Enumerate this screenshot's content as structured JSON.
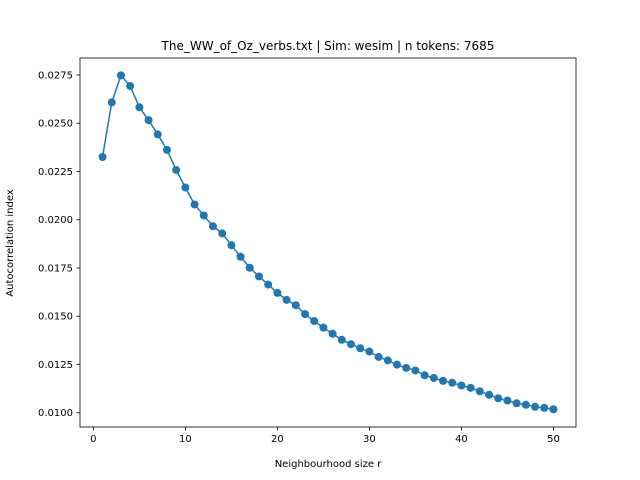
{
  "chart_data": {
    "type": "line",
    "title": "The_WW_of_Oz_verbs.txt | Sim: wesim | n tokens: 7685",
    "xlabel": "Neighbourhood size r",
    "ylabel": "Autocorrelation index",
    "xlim": [
      -1.45,
      52.45
    ],
    "ylim": [
      0.00926,
      0.02838
    ],
    "x_ticks": [
      0,
      10,
      20,
      30,
      40,
      50
    ],
    "y_ticks": [
      0.01,
      0.0125,
      0.015,
      0.0175,
      0.02,
      0.0225,
      0.025,
      0.0275
    ],
    "x_tick_labels": [
      "0",
      "10",
      "20",
      "30",
      "40",
      "50"
    ],
    "y_tick_labels": [
      "0.0100",
      "0.0125",
      "0.0150",
      "0.0175",
      "0.0200",
      "0.0225",
      "0.0250",
      "0.0275"
    ],
    "grid": false,
    "legend": "none",
    "color": "#1f77b4",
    "series": [
      {
        "x": [
          1,
          2,
          3,
          4,
          5,
          6,
          7,
          8,
          9,
          10,
          11,
          12,
          13,
          14,
          15,
          16,
          17,
          18,
          19,
          20,
          21,
          22,
          23,
          24,
          25,
          26,
          27,
          28,
          29,
          30,
          31,
          32,
          33,
          34,
          35,
          36,
          37,
          38,
          39,
          40,
          41,
          42,
          43,
          44,
          45,
          46,
          47,
          48,
          49,
          50
        ],
        "values": [
          0.02325,
          0.02608,
          0.02748,
          0.02693,
          0.02583,
          0.02516,
          0.02442,
          0.02362,
          0.02258,
          0.02167,
          0.02079,
          0.02022,
          0.01966,
          0.01929,
          0.01868,
          0.01808,
          0.01751,
          0.01706,
          0.01664,
          0.01621,
          0.01585,
          0.01557,
          0.01511,
          0.01475,
          0.01441,
          0.01409,
          0.01378,
          0.01355,
          0.01334,
          0.01317,
          0.01289,
          0.01271,
          0.01249,
          0.01232,
          0.01219,
          0.01194,
          0.0118,
          0.01165,
          0.01155,
          0.01141,
          0.01129,
          0.01111,
          0.01093,
          0.01075,
          0.01063,
          0.01049,
          0.01041,
          0.01031,
          0.01025,
          0.01018
        ]
      }
    ]
  }
}
